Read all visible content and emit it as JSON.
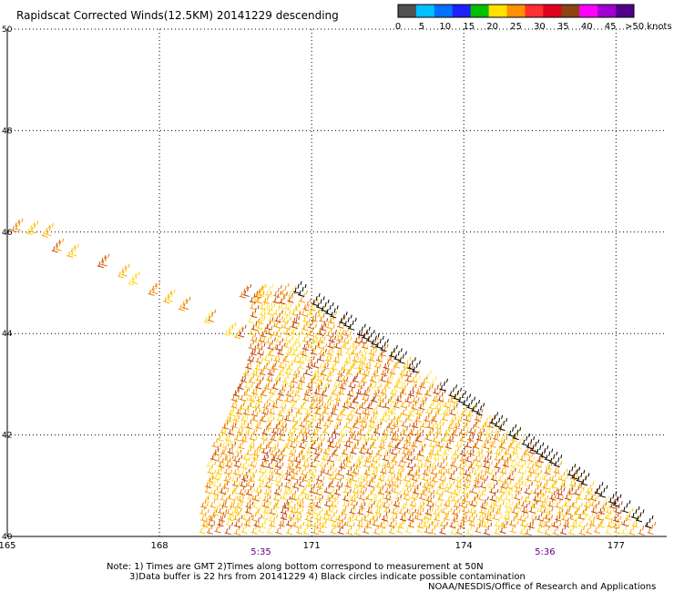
{
  "chart_data": {
    "type": "scatter",
    "title": "Rapidscat Corrected Winds(12.5KM) 20141229 descending",
    "x_ticks": [
      "165",
      "168",
      "171",
      "174",
      "177"
    ],
    "y_ticks": [
      "40",
      "42",
      "44",
      "46",
      "48",
      "50"
    ],
    "x_range": [
      165,
      178
    ],
    "y_range": [
      40,
      50
    ],
    "grid": true,
    "time_labels": [
      {
        "label": "5:35",
        "lon": 170
      },
      {
        "label": "5:36",
        "lon": 175.6
      }
    ],
    "colorbar": {
      "labels": [
        "0",
        "5",
        "10",
        "15",
        "20",
        "25",
        "30",
        "35",
        "40",
        "45",
        ">50 knots"
      ],
      "colors": [
        "#505050",
        "#00c0ff",
        "#0070ff",
        "#2020ff",
        "#00c000",
        "#ffe000",
        "#ff9000",
        "#ff3030",
        "#e00020",
        "#8b4513",
        "#ff00ff",
        "#a000d0",
        "#50008b"
      ]
    },
    "swath": {
      "left_edge": [
        [
          165.2,
          46
        ],
        [
          170.0,
          44.55
        ],
        [
          169.9,
          43.5
        ],
        [
          169.1,
          41.5
        ],
        [
          168.9,
          40
        ]
      ],
      "right_edge": [
        [
          170.7,
          44.8
        ],
        [
          177.9,
          40
        ]
      ],
      "points_description": "wind barbs mostly 20-35 knots"
    }
  },
  "notes": {
    "line1": "Note: 1) Times are GMT 2)Times along bottom correspond to measurement at 50N",
    "line2": "3)Data buffer is 22 hrs from 20141229 4) Black circles indicate possible contamination",
    "line3": "NOAA/NESDIS/Office of Research and Applications"
  }
}
